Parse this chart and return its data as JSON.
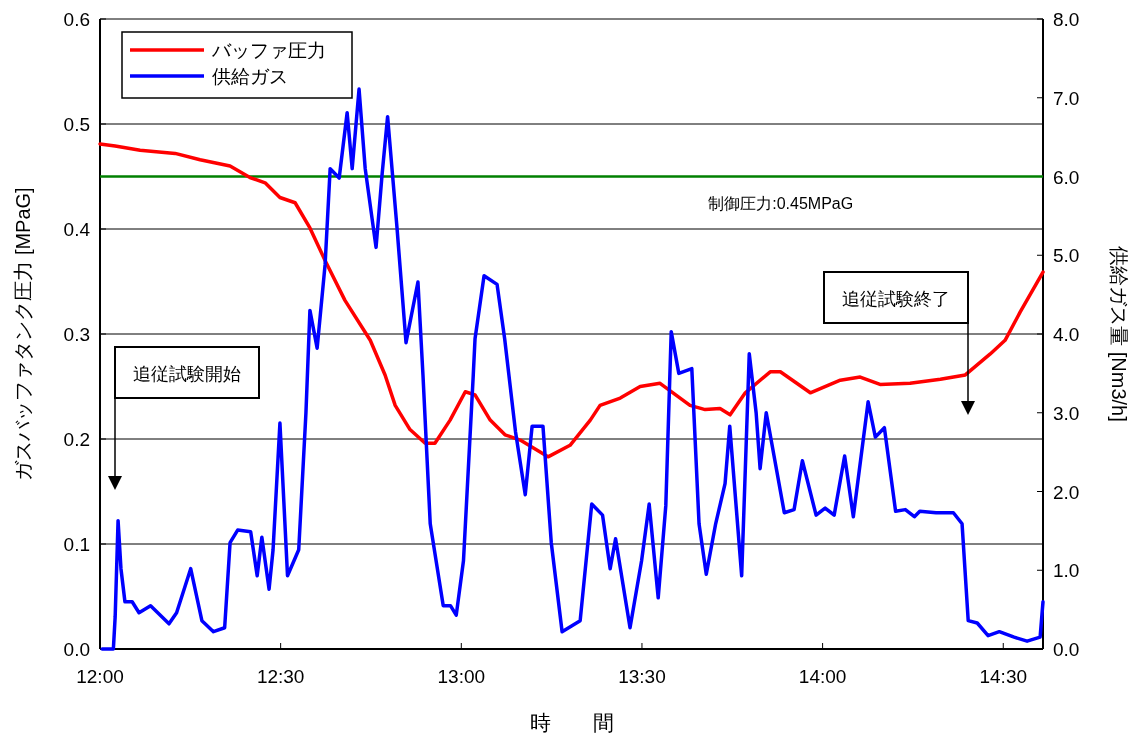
{
  "chart_data": {
    "type": "line",
    "xlabel": "時　　間",
    "ylabel": "ガスバッファタンク圧力 [MPaG]",
    "y2label": "供給ガス量 [Nm3/h]",
    "xlim": [
      12,
      14.61
    ],
    "xticks": [
      {
        "value": 12,
        "label": "12:00"
      },
      {
        "value": 12.5,
        "label": "12:30"
      },
      {
        "value": 13,
        "label": "13:00"
      },
      {
        "value": 13.5,
        "label": "13:30"
      },
      {
        "value": 14,
        "label": "14:00"
      },
      {
        "value": 14.5,
        "label": "14:30"
      }
    ],
    "ylim": [
      0,
      0.6
    ],
    "yticks": [
      {
        "value": 0,
        "label": "0.0"
      },
      0.1,
      0.2,
      0.3,
      0.4,
      0.5,
      0.6
    ],
    "y2lim": [
      0,
      8
    ],
    "y2ticks": [
      {
        "value": 0,
        "label": "0.0"
      },
      {
        "value": 1,
        "label": "1.0"
      },
      {
        "value": 2,
        "label": "2.0"
      },
      {
        "value": 3,
        "label": "3.0"
      },
      {
        "value": 4,
        "label": "4.0"
      },
      {
        "value": 5,
        "label": "5.0"
      },
      {
        "value": 6,
        "label": "6.0"
      },
      {
        "value": 7,
        "label": "7.0"
      },
      {
        "value": 8,
        "label": "8.0"
      }
    ],
    "grid": "y",
    "legend": "top left",
    "line_style": "solid",
    "marker": "none",
    "series": [
      {
        "name": "バッファ圧力",
        "color": "#ff0000",
        "x": [
          12.0,
          12.042,
          12.111,
          12.208,
          12.277,
          12.36,
          12.415,
          12.457,
          12.498,
          12.54,
          12.581,
          12.623,
          12.678,
          12.748,
          12.789,
          12.817,
          12.858,
          12.9,
          12.927,
          12.969,
          13.011,
          13.038,
          13.08,
          13.121,
          13.163,
          13.24,
          13.301,
          13.357,
          13.384,
          13.44,
          13.495,
          13.55,
          13.633,
          13.675,
          13.716,
          13.744,
          13.786,
          13.855,
          13.883,
          13.966,
          14.049,
          14.104,
          14.159,
          14.242,
          14.326,
          14.395,
          14.464,
          14.505,
          14.547,
          14.61
        ],
        "values": [
          0.481,
          0.479,
          0.475,
          0.472,
          0.466,
          0.46,
          0.449,
          0.444,
          0.43,
          0.425,
          0.401,
          0.37,
          0.332,
          0.294,
          0.261,
          0.232,
          0.209,
          0.196,
          0.196,
          0.218,
          0.245,
          0.242,
          0.218,
          0.204,
          0.199,
          0.183,
          0.194,
          0.218,
          0.232,
          0.239,
          0.25,
          0.253,
          0.232,
          0.228,
          0.229,
          0.223,
          0.244,
          0.264,
          0.264,
          0.244,
          0.256,
          0.259,
          0.252,
          0.253,
          0.257,
          0.261,
          0.281,
          0.294,
          0.321,
          0.359
        ]
      },
      {
        "name": "供給ガス",
        "color": "#0000ff",
        "axis": "y2",
        "x": [
          12.006,
          12.037,
          12.042,
          12.05,
          12.058,
          12.069,
          12.089,
          12.108,
          12.14,
          12.191,
          12.212,
          12.251,
          12.282,
          12.314,
          12.345,
          12.36,
          12.381,
          12.417,
          12.435,
          12.448,
          12.468,
          12.479,
          12.498,
          12.519,
          12.55,
          12.57,
          12.581,
          12.601,
          12.623,
          12.637,
          12.662,
          12.684,
          12.698,
          12.717,
          12.734,
          12.764,
          12.781,
          12.796,
          12.822,
          12.847,
          12.88,
          12.894,
          12.914,
          12.95,
          12.97,
          12.986,
          13.006,
          13.033,
          13.038,
          13.063,
          13.099,
          13.12,
          13.15,
          13.177,
          13.196,
          13.226,
          13.249,
          13.279,
          13.304,
          13.329,
          13.361,
          13.391,
          13.412,
          13.427,
          13.467,
          13.499,
          13.52,
          13.545,
          13.566,
          13.581,
          13.602,
          13.638,
          13.658,
          13.678,
          13.704,
          13.73,
          13.743,
          13.776,
          13.797,
          13.816,
          13.827,
          13.844,
          13.894,
          13.921,
          13.944,
          13.982,
          14.007,
          14.032,
          14.061,
          14.085,
          14.126,
          14.146,
          14.171,
          14.202,
          14.229,
          14.254,
          14.269,
          14.314,
          14.362,
          14.386,
          14.403,
          14.428,
          14.458,
          14.489,
          14.53,
          14.566,
          14.602,
          14.61
        ],
        "values": [
          0,
          0,
          0.41,
          1.63,
          1.02,
          0.6,
          0.6,
          0.46,
          0.55,
          0.32,
          0.46,
          1.02,
          0.36,
          0.22,
          0.27,
          1.35,
          1.51,
          1.49,
          0.93,
          1.42,
          0.76,
          1.26,
          2.87,
          0.93,
          1.26,
          3.0,
          4.3,
          3.82,
          4.88,
          6.1,
          5.98,
          6.81,
          6.1,
          7.11,
          6.1,
          5.1,
          6.04,
          6.76,
          5.35,
          3.89,
          4.66,
          3.47,
          1.59,
          0.55,
          0.55,
          0.43,
          1.12,
          3.47,
          3.94,
          4.74,
          4.63,
          3.94,
          2.76,
          1.96,
          2.83,
          2.83,
          1.35,
          0.22,
          0.29,
          0.36,
          1.84,
          1.7,
          1.02,
          1.4,
          0.27,
          1.12,
          1.84,
          0.65,
          1.82,
          4.03,
          3.5,
          3.56,
          1.59,
          0.95,
          1.59,
          2.1,
          2.83,
          0.93,
          3.75,
          3.0,
          2.29,
          3.0,
          1.73,
          1.77,
          2.39,
          1.7,
          1.79,
          1.7,
          2.45,
          1.68,
          3.14,
          2.69,
          2.81,
          1.75,
          1.77,
          1.68,
          1.75,
          1.73,
          1.73,
          1.59,
          0.36,
          0.33,
          0.17,
          0.22,
          0.15,
          0.1,
          0.15,
          0.6
        ]
      }
    ],
    "ref_lines": [
      {
        "axis": "y",
        "value": 0.45,
        "label": "制御圧力:0.45MPaG",
        "color": "#008000"
      }
    ],
    "annotations": [
      "追従試験開始",
      "追従試験終了"
    ]
  }
}
